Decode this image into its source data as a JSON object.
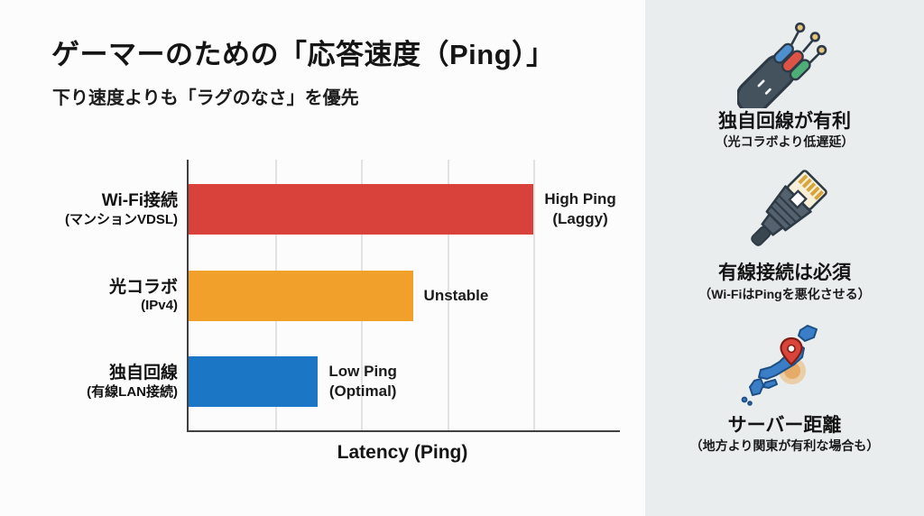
{
  "header": {
    "title": "ゲーマーのための「応答速度（Ping）」",
    "subtitle": "下り速度よりも「ラグのなさ」を優先"
  },
  "chart_data": {
    "type": "bar",
    "orientation": "horizontal",
    "title": "",
    "xlabel": "Latency (Ping)",
    "ylabel": "",
    "xlim": [
      0,
      5
    ],
    "gridlines": [
      1,
      2,
      3,
      4
    ],
    "grid": true,
    "legend": "none",
    "categories": [
      "Wi-Fi接続",
      "光コラボ",
      "独自回線"
    ],
    "category_notes": [
      "(マンションVDSL)",
      "(IPv4)",
      "(有線LAN接続)"
    ],
    "values": [
      4.0,
      2.6,
      1.5
    ],
    "colors": [
      "#d8423a",
      "#f2a02c",
      "#1b76c5"
    ],
    "bar_labels": [
      [
        "High Ping",
        "(Laggy)"
      ],
      [
        "Unstable"
      ],
      [
        "Low Ping",
        "(Optimal)"
      ]
    ]
  },
  "sidebar": {
    "items": [
      {
        "icon": "fiber-cable-icon",
        "title": "独自回線が有利",
        "subtitle": "（光コラボより低遅延）"
      },
      {
        "icon": "ethernet-plug-icon",
        "title": "有線接続は必須",
        "subtitle": "（Wi-FiはPingを悪化させる）"
      },
      {
        "icon": "japan-map-pin-icon",
        "title": "サーバー距離",
        "subtitle": "（地方より関東が有利な場合も）"
      }
    ]
  },
  "colors": {
    "main_bg": "#fcfcfc",
    "sidebar_bg": "#e9edee",
    "axis": "#414141",
    "gridline": "#e2e2e2",
    "text": "#151515"
  }
}
